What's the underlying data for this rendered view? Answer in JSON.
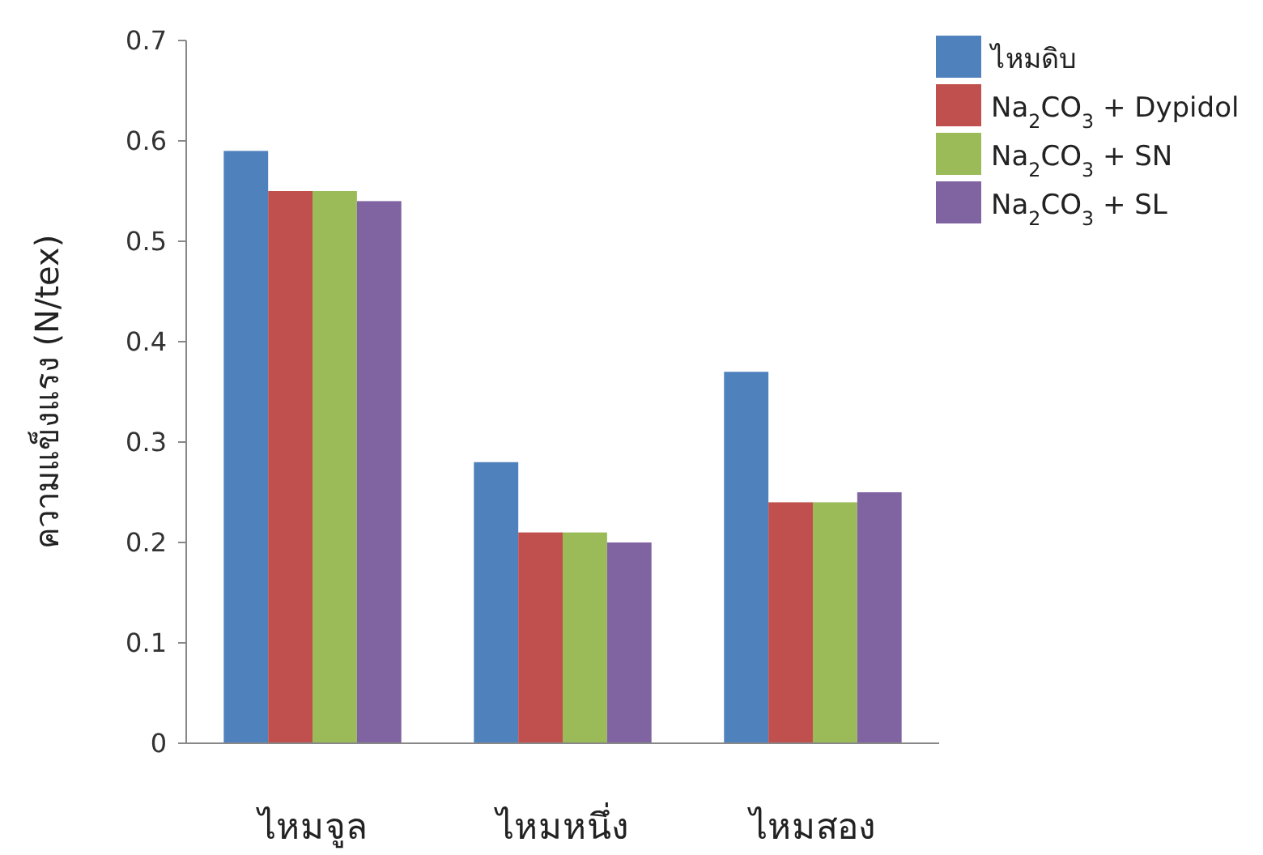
{
  "chart_data": {
    "type": "bar",
    "ylabel": "ความแข็งแรง (N/tex)",
    "categories": [
      "ไหมจูล",
      "ไหมหนึ่ง",
      "ไหมสอง"
    ],
    "series": [
      {
        "name": "ไหมดิบ",
        "color": "#4f81bd",
        "values": [
          0.59,
          0.28,
          0.37
        ]
      },
      {
        "name": "Na$_{2}$CO$_{3}$ + Dypidol",
        "color": "#c0504d",
        "values": [
          0.55,
          0.21,
          0.24
        ]
      },
      {
        "name": "Na$_{2}$CO$_{3}$ + SN",
        "color": "#9bbb59",
        "values": [
          0.55,
          0.21,
          0.24
        ]
      },
      {
        "name": "Na$_{2}$CO$_{3}$ + SL",
        "color": "#8064a2",
        "values": [
          0.54,
          0.2,
          0.25
        ]
      }
    ],
    "ylim": [
      0,
      0.7
    ],
    "yticks": [
      0,
      0.1,
      0.2,
      0.3,
      0.4,
      0.5,
      0.6,
      0.7
    ],
    "grid": false,
    "legend": "top right"
  }
}
